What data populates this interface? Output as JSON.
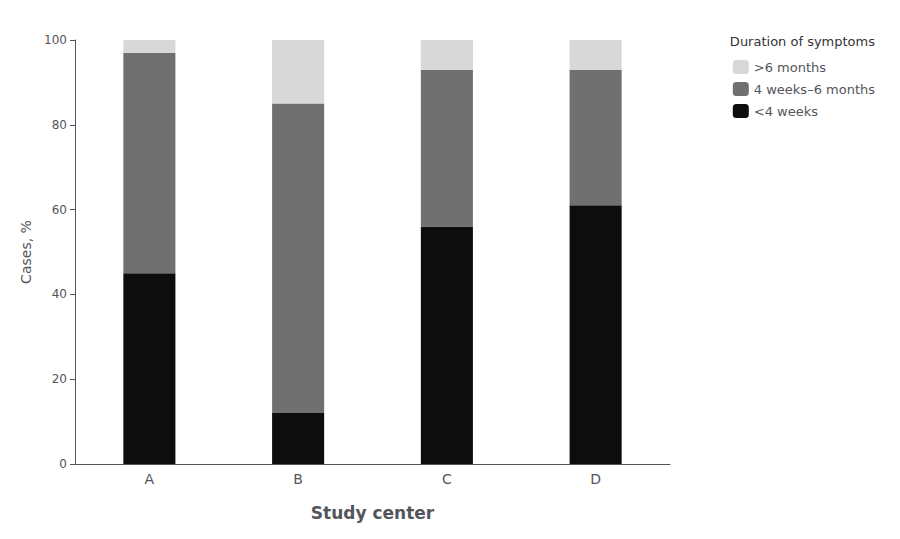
{
  "chart_data": {
    "type": "bar",
    "stacked": true,
    "categories": [
      "A",
      "B",
      "C",
      "D"
    ],
    "series": [
      {
        "name": "<4 weeks",
        "color": "#0d0d0d",
        "values": [
          45,
          12,
          56,
          61
        ]
      },
      {
        "name": "4 weeks–6 months",
        "color": "#707070",
        "values": [
          52,
          73,
          37,
          32
        ]
      },
      {
        "name": ">6 months",
        "color": "#d8d8d8",
        "values": [
          3,
          15,
          7,
          7
        ]
      }
    ],
    "xlabel": "Study center",
    "ylabel": "Cases, %",
    "legend_title": "Duration of symptoms",
    "ylim": [
      0,
      100
    ],
    "yticks": [
      0,
      20,
      40,
      60,
      80,
      100
    ],
    "grid": false,
    "legend": "upper right"
  }
}
